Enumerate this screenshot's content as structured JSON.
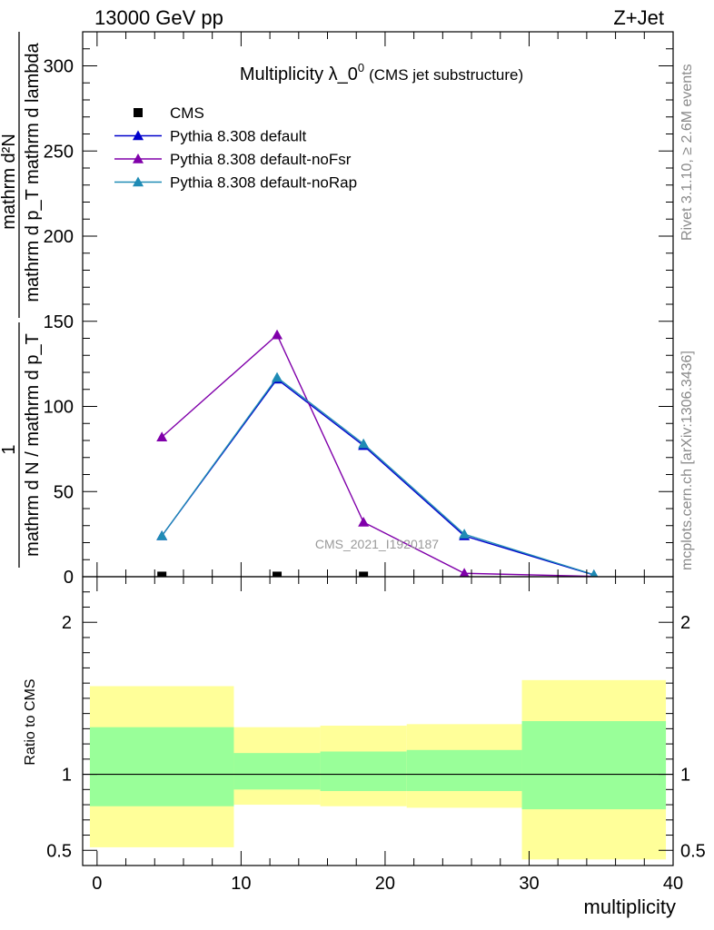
{
  "header": {
    "left": "13000 GeV pp",
    "right": "Z+Jet"
  },
  "side_text": {
    "top": "Rivet 3.1.10, ≥ 2.6M events",
    "bottom": "mcplots.cern.ch [arXiv:1306.3436]"
  },
  "chart_data": [
    {
      "type": "line",
      "title": "Multiplicity λ_0",
      "title_superscript": "0",
      "subtitle": "(CMS jet substructure)",
      "watermark": "CMS_2021_I1920187",
      "ylabel_numerator": "mathrm d²N",
      "ylabel_denominator": "mathrm d p_T mathrm d lambda",
      "ylabel_prefactor_num": "1",
      "ylabel_prefactor_den": "mathrm d N / mathrm d p_T",
      "xlim": [
        -1,
        40
      ],
      "ylim": [
        0,
        320
      ],
      "yticks": [
        0,
        50,
        100,
        150,
        200,
        250,
        300
      ],
      "legend_position": "top-left",
      "series": [
        {
          "name": "CMS",
          "marker": "square",
          "color": "#000000",
          "x": [
            4.5,
            12.5,
            18.5
          ],
          "y": [
            0.3,
            0.3,
            0.3
          ]
        },
        {
          "name": "Pythia 8.308 default",
          "marker": "triangle",
          "color": "#0000cc",
          "x": [
            4.5,
            12.5,
            18.5,
            25.5,
            34.5
          ],
          "y": [
            24,
            116,
            77,
            24,
            1
          ]
        },
        {
          "name": "Pythia 8.308 default-noFsr",
          "marker": "triangle",
          "color": "#8000aa",
          "x": [
            4.5,
            12.5,
            18.5,
            25.5,
            34.5
          ],
          "y": [
            82,
            142,
            32,
            2,
            0.2
          ]
        },
        {
          "name": "Pythia 8.308 default-noRap",
          "marker": "triangle",
          "color": "#1f8bb5",
          "x": [
            4.5,
            12.5,
            18.5,
            25.5,
            34.5
          ],
          "y": [
            24,
            117,
            78,
            25,
            1.2
          ]
        }
      ]
    },
    {
      "type": "area",
      "xlabel": "multiplicity",
      "ylabel": "Ratio to CMS",
      "xlim": [
        -1,
        40
      ],
      "ylim": [
        0.4,
        2.3
      ],
      "yticks": [
        0.5,
        1,
        2
      ],
      "xticks": [
        0,
        10,
        20,
        30,
        40
      ],
      "reference_line": 1,
      "bins": [
        {
          "x_low": -0.5,
          "x_high": 9.5,
          "green": [
            0.79,
            1.31
          ],
          "yellow": [
            0.52,
            1.58
          ]
        },
        {
          "x_low": 9.5,
          "x_high": 15.5,
          "green": [
            0.9,
            1.14
          ],
          "yellow": [
            0.8,
            1.31
          ]
        },
        {
          "x_low": 15.5,
          "x_high": 21.5,
          "green": [
            0.89,
            1.15
          ],
          "yellow": [
            0.79,
            1.32
          ]
        },
        {
          "x_low": 21.5,
          "x_high": 29.5,
          "green": [
            0.89,
            1.16
          ],
          "yellow": [
            0.78,
            1.33
          ]
        },
        {
          "x_low": 29.5,
          "x_high": 39.5,
          "green": [
            0.77,
            1.35
          ],
          "yellow": [
            0.44,
            1.62
          ]
        }
      ],
      "colors": {
        "green": "#99ff99",
        "yellow": "#ffff99"
      }
    }
  ]
}
